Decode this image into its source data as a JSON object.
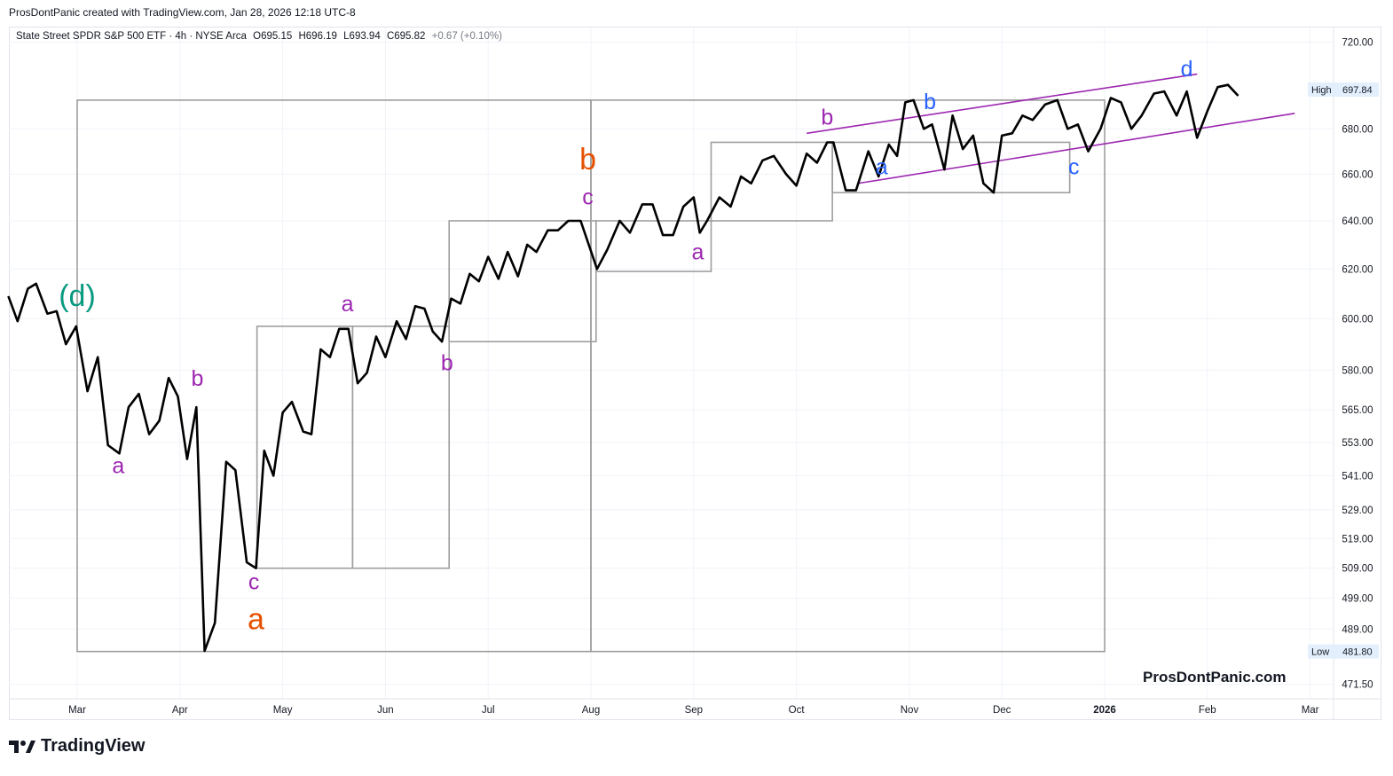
{
  "header": {
    "credit": "ProsDontPanic created with TradingView.com, Jan 28, 2026 12:18 UTC-8"
  },
  "legend": {
    "name": "State Street SPDR S&P 500 ETF · 4h · NYSE Arca",
    "open": "O695.15",
    "high": "H696.19",
    "low": "L693.94",
    "close": "C695.82",
    "change": "+0.67 (+0.10%)"
  },
  "watermark": "ProsDontPanic.com",
  "footer": {
    "brand": "TradingView"
  },
  "colors": {
    "price_line": "#000000",
    "box": "#9e9e9e",
    "channel": "#9c27b0",
    "purple_label": "#9c27b0",
    "orange_label": "#e65100",
    "blue_label": "#2962ff",
    "teal_label": "#089981"
  },
  "chart_data": {
    "type": "line",
    "title": "State Street SPDR S&P 500 ETF · 4h · NYSE Arca",
    "xlabel": "",
    "ylabel": "",
    "scale": "log",
    "ylim": [
      467,
      727
    ],
    "y_ticks": [
      "720.00",
      "680.00",
      "660.00",
      "640.00",
      "620.00",
      "600.00",
      "580.00",
      "565.00",
      "553.00",
      "541.00",
      "529.00",
      "519.00",
      "509.00",
      "499.00",
      "489.00",
      "471.50"
    ],
    "x_ticks": [
      {
        "label": "Mar",
        "x": 1.0
      },
      {
        "label": "Apr",
        "x": 2.0
      },
      {
        "label": "May",
        "x": 3.0
      },
      {
        "label": "Jun",
        "x": 4.0
      },
      {
        "label": "Jul",
        "x": 5.0
      },
      {
        "label": "Aug",
        "x": 6.0
      },
      {
        "label": "Sep",
        "x": 7.0
      },
      {
        "label": "Oct",
        "x": 8.0
      },
      {
        "label": "Nov",
        "x": 9.1
      },
      {
        "label": "Dec",
        "x": 10.0
      },
      {
        "label": "2026",
        "x": 11.0
      },
      {
        "label": "Feb",
        "x": 12.0
      },
      {
        "label": "Mar",
        "x": 13.0
      }
    ],
    "grid": true,
    "price_markers": [
      {
        "label": "High",
        "value": "697.84",
        "y": 697.84
      },
      {
        "label": "Low",
        "value": "481.80",
        "y": 481.8
      }
    ],
    "series": [
      {
        "values": [
          [
            0.33,
            609
          ],
          [
            0.42,
            599
          ],
          [
            0.52,
            612
          ],
          [
            0.6,
            614
          ],
          [
            0.71,
            602
          ],
          [
            0.8,
            603
          ],
          [
            0.89,
            590
          ],
          [
            0.99,
            597
          ],
          [
            1.1,
            572
          ],
          [
            1.2,
            585
          ],
          [
            1.3,
            552
          ],
          [
            1.41,
            549
          ],
          [
            1.5,
            566
          ],
          [
            1.6,
            571
          ],
          [
            1.7,
            556
          ],
          [
            1.8,
            561
          ],
          [
            1.89,
            577
          ],
          [
            1.98,
            570
          ],
          [
            2.07,
            547
          ],
          [
            2.16,
            566
          ],
          [
            2.24,
            482
          ],
          [
            2.34,
            491
          ],
          [
            2.45,
            546
          ],
          [
            2.54,
            543
          ],
          [
            2.65,
            511
          ],
          [
            2.74,
            509
          ],
          [
            2.82,
            550
          ],
          [
            2.91,
            541
          ],
          [
            3.0,
            564
          ],
          [
            3.09,
            568
          ],
          [
            3.2,
            557
          ],
          [
            3.28,
            556
          ],
          [
            3.37,
            588
          ],
          [
            3.46,
            585
          ],
          [
            3.55,
            596
          ],
          [
            3.64,
            596
          ],
          [
            3.73,
            575
          ],
          [
            3.82,
            579
          ],
          [
            3.91,
            593
          ],
          [
            4.0,
            585
          ],
          [
            4.11,
            599
          ],
          [
            4.2,
            592
          ],
          [
            4.29,
            605
          ],
          [
            4.38,
            604
          ],
          [
            4.46,
            595
          ],
          [
            4.55,
            591
          ],
          [
            4.64,
            608
          ],
          [
            4.73,
            606
          ],
          [
            4.82,
            618
          ],
          [
            4.91,
            615
          ],
          [
            5.0,
            625
          ],
          [
            5.1,
            616
          ],
          [
            5.19,
            627
          ],
          [
            5.29,
            617
          ],
          [
            5.38,
            630
          ],
          [
            5.47,
            627
          ],
          [
            5.58,
            636
          ],
          [
            5.68,
            636
          ],
          [
            5.78,
            640
          ],
          [
            5.9,
            640
          ],
          [
            6.06,
            620
          ],
          [
            6.16,
            628
          ],
          [
            6.28,
            640
          ],
          [
            6.38,
            635
          ],
          [
            6.5,
            647
          ],
          [
            6.6,
            647
          ],
          [
            6.7,
            634
          ],
          [
            6.8,
            634
          ],
          [
            6.9,
            646
          ],
          [
            7.0,
            650
          ],
          [
            7.06,
            635
          ],
          [
            7.13,
            640
          ],
          [
            7.25,
            650
          ],
          [
            7.36,
            646
          ],
          [
            7.46,
            659
          ],
          [
            7.56,
            656
          ],
          [
            7.67,
            666
          ],
          [
            7.78,
            668
          ],
          [
            7.9,
            660
          ],
          [
            8.0,
            655
          ],
          [
            8.1,
            669
          ],
          [
            8.2,
            665
          ],
          [
            8.3,
            674
          ],
          [
            8.36,
            674
          ],
          [
            8.48,
            653
          ],
          [
            8.58,
            653
          ],
          [
            8.7,
            670
          ],
          [
            8.8,
            659
          ],
          [
            8.9,
            673
          ],
          [
            8.98,
            668
          ],
          [
            9.06,
            692
          ],
          [
            9.14,
            693
          ],
          [
            9.24,
            680
          ],
          [
            9.32,
            682
          ],
          [
            9.44,
            662
          ],
          [
            9.52,
            686
          ],
          [
            9.62,
            671
          ],
          [
            9.72,
            677
          ],
          [
            9.82,
            656
          ],
          [
            9.92,
            652
          ],
          [
            10.0,
            677
          ],
          [
            10.1,
            678
          ],
          [
            10.2,
            686
          ],
          [
            10.3,
            684
          ],
          [
            10.42,
            691
          ],
          [
            10.54,
            693
          ],
          [
            10.64,
            680
          ],
          [
            10.74,
            682
          ],
          [
            10.84,
            670
          ],
          [
            10.96,
            680
          ],
          [
            11.06,
            694
          ],
          [
            11.16,
            692
          ],
          [
            11.26,
            680
          ],
          [
            11.36,
            686
          ],
          [
            11.48,
            696
          ],
          [
            11.58,
            697
          ],
          [
            11.7,
            686
          ],
          [
            11.8,
            697
          ],
          [
            11.9,
            676
          ],
          [
            12.0,
            688
          ],
          [
            12.1,
            699
          ],
          [
            12.2,
            700
          ],
          [
            12.3,
            695
          ]
        ]
      }
    ],
    "boxes": [
      {
        "x0": 1.0,
        "x1": 6.0,
        "y0": 481.8,
        "y1": 693
      },
      {
        "x0": 6.0,
        "x1": 11.0,
        "y0": 481.8,
        "y1": 693
      },
      {
        "x0": 2.75,
        "x1": 3.68,
        "y0": 509,
        "y1": 597
      },
      {
        "x0": 3.68,
        "x1": 4.62,
        "y0": 509,
        "y1": 597
      },
      {
        "x0": 4.62,
        "x1": 6.05,
        "y0": 591,
        "y1": 640
      },
      {
        "x0": 6.05,
        "x1": 7.17,
        "y0": 619,
        "y1": 640
      },
      {
        "x0": 7.17,
        "x1": 8.35,
        "y0": 640,
        "y1": 674
      },
      {
        "x0": 8.35,
        "x1": 10.66,
        "y0": 652,
        "y1": 674
      }
    ],
    "trendlines": [
      {
        "x0": 8.1,
        "y0": 678,
        "x1": 11.9,
        "y1": 705
      },
      {
        "x0": 8.6,
        "y0": 656,
        "x1": 12.85,
        "y1": 687
      }
    ],
    "annotations": [
      {
        "text": "(d)",
        "x": 1.0,
        "y": 605,
        "color": "teal"
      },
      {
        "text": "a",
        "x": 1.4,
        "y": 542,
        "color": "purple"
      },
      {
        "text": "b",
        "x": 2.17,
        "y": 574,
        "color": "purple"
      },
      {
        "text": "c",
        "x": 2.72,
        "y": 502,
        "color": "purple"
      },
      {
        "text": "a",
        "x": 2.74,
        "y": 489,
        "color": "orange"
      },
      {
        "text": "a",
        "x": 3.63,
        "y": 603,
        "color": "purple"
      },
      {
        "text": "b",
        "x": 4.6,
        "y": 580,
        "color": "purple"
      },
      {
        "text": "b",
        "x": 5.97,
        "y": 662,
        "color": "orange"
      },
      {
        "text": "c",
        "x": 5.97,
        "y": 647,
        "color": "purple"
      },
      {
        "text": "a",
        "x": 7.04,
        "y": 624,
        "color": "purple"
      },
      {
        "text": "b",
        "x": 8.3,
        "y": 682,
        "color": "purple"
      },
      {
        "text": "a",
        "x": 8.83,
        "y": 660,
        "color": "blue"
      },
      {
        "text": "b",
        "x": 9.3,
        "y": 689,
        "color": "blue"
      },
      {
        "text": "c",
        "x": 10.7,
        "y": 660,
        "color": "blue"
      },
      {
        "text": "d",
        "x": 11.8,
        "y": 704,
        "color": "blue"
      }
    ]
  }
}
